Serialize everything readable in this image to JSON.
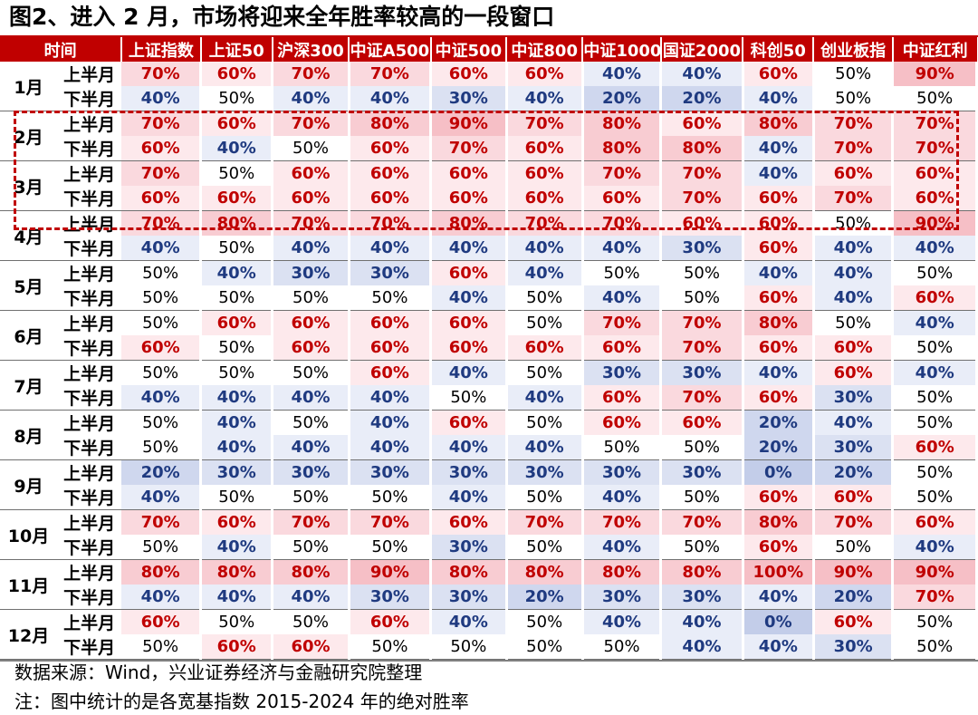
{
  "title": "图2、进入 2 月，市场将迎来全年胜率较高的一段窗口",
  "table": {
    "header": [
      "时间",
      "上证指数",
      "上证50",
      "沪深300",
      "中证A500",
      "中证500",
      "中证800",
      "中证1000",
      "国证2000",
      "科创50",
      "创业板指",
      "中证红利"
    ],
    "half_labels": [
      "上半月",
      "下半月"
    ],
    "months": [
      {
        "label": "1月",
        "rows": [
          [
            "70%",
            "60%",
            "70%",
            "70%",
            "60%",
            "60%",
            "40%",
            "40%",
            "60%",
            "50%",
            "90%"
          ],
          [
            "40%",
            "50%",
            "40%",
            "40%",
            "30%",
            "40%",
            "20%",
            "20%",
            "40%",
            "50%",
            "50%"
          ]
        ]
      },
      {
        "label": "2月",
        "rows": [
          [
            "70%",
            "60%",
            "70%",
            "80%",
            "90%",
            "70%",
            "80%",
            "60%",
            "80%",
            "70%",
            "70%"
          ],
          [
            "60%",
            "40%",
            "50%",
            "60%",
            "70%",
            "60%",
            "80%",
            "80%",
            "40%",
            "70%",
            "70%"
          ]
        ]
      },
      {
        "label": "3月",
        "rows": [
          [
            "70%",
            "50%",
            "60%",
            "60%",
            "60%",
            "60%",
            "70%",
            "70%",
            "40%",
            "60%",
            "60%"
          ],
          [
            "60%",
            "60%",
            "60%",
            "60%",
            "60%",
            "60%",
            "60%",
            "70%",
            "60%",
            "70%",
            "60%"
          ]
        ]
      },
      {
        "label": "4月",
        "rows": [
          [
            "70%",
            "80%",
            "70%",
            "70%",
            "80%",
            "70%",
            "70%",
            "60%",
            "60%",
            "50%",
            "90%"
          ],
          [
            "40%",
            "50%",
            "40%",
            "40%",
            "40%",
            "40%",
            "40%",
            "30%",
            "60%",
            "40%",
            "40%"
          ]
        ]
      },
      {
        "label": "5月",
        "rows": [
          [
            "50%",
            "40%",
            "30%",
            "30%",
            "60%",
            "40%",
            "50%",
            "50%",
            "40%",
            "40%",
            "50%"
          ],
          [
            "50%",
            "50%",
            "50%",
            "50%",
            "40%",
            "50%",
            "40%",
            "50%",
            "60%",
            "40%",
            "60%"
          ]
        ]
      },
      {
        "label": "6月",
        "rows": [
          [
            "50%",
            "60%",
            "60%",
            "60%",
            "60%",
            "50%",
            "70%",
            "70%",
            "80%",
            "50%",
            "40%"
          ],
          [
            "60%",
            "50%",
            "60%",
            "60%",
            "60%",
            "60%",
            "60%",
            "70%",
            "60%",
            "60%",
            "50%"
          ]
        ]
      },
      {
        "label": "7月",
        "rows": [
          [
            "50%",
            "50%",
            "50%",
            "60%",
            "40%",
            "50%",
            "30%",
            "30%",
            "40%",
            "60%",
            "40%"
          ],
          [
            "40%",
            "40%",
            "40%",
            "40%",
            "50%",
            "40%",
            "60%",
            "70%",
            "60%",
            "30%",
            "50%"
          ]
        ]
      },
      {
        "label": "8月",
        "rows": [
          [
            "50%",
            "40%",
            "50%",
            "40%",
            "60%",
            "50%",
            "60%",
            "60%",
            "20%",
            "40%",
            "50%"
          ],
          [
            "50%",
            "40%",
            "40%",
            "40%",
            "40%",
            "40%",
            "50%",
            "50%",
            "20%",
            "30%",
            "60%"
          ]
        ]
      },
      {
        "label": "9月",
        "rows": [
          [
            "20%",
            "30%",
            "30%",
            "30%",
            "30%",
            "30%",
            "30%",
            "30%",
            "0%",
            "20%",
            "50%"
          ],
          [
            "40%",
            "50%",
            "50%",
            "50%",
            "40%",
            "50%",
            "40%",
            "50%",
            "60%",
            "60%",
            "50%"
          ]
        ]
      },
      {
        "label": "10月",
        "rows": [
          [
            "70%",
            "60%",
            "70%",
            "70%",
            "60%",
            "70%",
            "70%",
            "70%",
            "80%",
            "70%",
            "60%"
          ],
          [
            "50%",
            "40%",
            "50%",
            "50%",
            "30%",
            "50%",
            "40%",
            "50%",
            "60%",
            "50%",
            "40%"
          ]
        ]
      },
      {
        "label": "11月",
        "rows": [
          [
            "80%",
            "80%",
            "80%",
            "90%",
            "80%",
            "80%",
            "80%",
            "80%",
            "100%",
            "90%",
            "90%"
          ],
          [
            "40%",
            "40%",
            "40%",
            "30%",
            "30%",
            "20%",
            "30%",
            "30%",
            "40%",
            "20%",
            "70%"
          ]
        ]
      },
      {
        "label": "12月",
        "rows": [
          [
            "60%",
            "50%",
            "50%",
            "60%",
            "40%",
            "50%",
            "40%",
            "40%",
            "0%",
            "60%",
            "50%"
          ],
          [
            "50%",
            "60%",
            "60%",
            "50%",
            "50%",
            "50%",
            "50%",
            "40%",
            "40%",
            "30%",
            "50%"
          ]
        ]
      }
    ]
  },
  "colors": {
    "accent": "#c00000",
    "high_text": "#c00000",
    "low_text": "#1f3a80",
    "highlight_box": "#c00000"
  },
  "highlight": {
    "months": [
      "2月",
      "3月"
    ],
    "extra_row": "4月 上半月"
  },
  "source": "数据来源：Wind，兴业证券经济与金融研究院整理",
  "note": "注：图中统计的是各宽基指数 2015-2024 年的绝对胜率"
}
